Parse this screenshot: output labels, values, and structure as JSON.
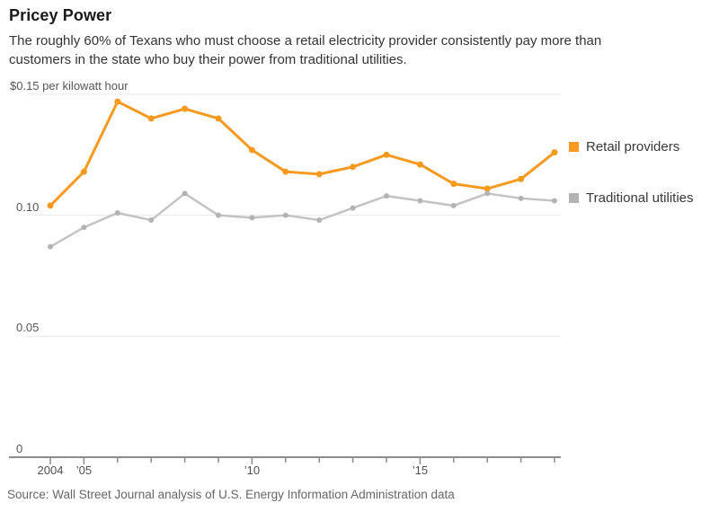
{
  "header": {
    "title": "Pricey Power",
    "subtitle": "The roughly 60% of Texans who must choose a retail electricity provider consistently pay more than customers in the state who buy their power from traditional utilities."
  },
  "chart_data": {
    "type": "line",
    "x": [
      2004,
      2005,
      2006,
      2007,
      2008,
      2009,
      2010,
      2011,
      2012,
      2013,
      2014,
      2015,
      2016,
      2017,
      2018,
      2019
    ],
    "series": [
      {
        "name": "Retail providers",
        "color": "#F6991F",
        "swatch_color": "#F6991F",
        "values": [
          0.104,
          0.118,
          0.147,
          0.14,
          0.144,
          0.14,
          0.127,
          0.118,
          0.117,
          0.12,
          0.125,
          0.121,
          0.113,
          0.111,
          0.115,
          0.126
        ]
      },
      {
        "name": "Traditional utilities",
        "color": "#C3C3C3",
        "dot_color": "#B3B3B3",
        "swatch_color": "#B3B3B3",
        "values": [
          0.087,
          0.095,
          0.101,
          0.098,
          0.109,
          0.1,
          0.099,
          0.1,
          0.098,
          0.103,
          0.108,
          0.106,
          0.104,
          0.109,
          0.107,
          0.106
        ]
      }
    ],
    "ylim": [
      0,
      0.15
    ],
    "unit_label": "$0.15 per kilowatt hour",
    "y_ticks": [
      {
        "value": 0,
        "label": "0"
      },
      {
        "value": 0.05,
        "label": "0.05"
      },
      {
        "value": 0.1,
        "label": "0.10"
      },
      {
        "value": 0.15,
        "label": "$0.15 per kilowatt hour"
      }
    ],
    "x_tick_labels": [
      {
        "year": 2004,
        "label": "2004"
      },
      {
        "year": 2005,
        "label": "’05"
      },
      {
        "year": 2010,
        "label": "’10"
      },
      {
        "year": 2015,
        "label": "’15"
      }
    ],
    "grid": "horizontal",
    "legend_position": "right"
  },
  "footer": {
    "source": "Source: Wall Street Journal analysis of U.S. Energy Information Administration data"
  }
}
